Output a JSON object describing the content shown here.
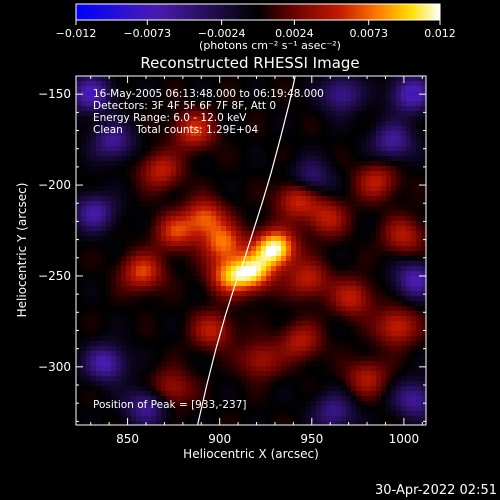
{
  "chart_data": {
    "type": "heatmap",
    "title": "Reconstructed RHESSI Image",
    "xlabel": "Heliocentric X (arcsec)",
    "ylabel": "Heliocentric Y (arcsec)",
    "xlim": [
      822,
      1012
    ],
    "ylim": [
      -332,
      -140
    ],
    "x_ticks": [
      850,
      900,
      950,
      1000
    ],
    "y_ticks": [
      -150,
      -200,
      -250,
      -300
    ],
    "x_tick_labels": [
      "850",
      "900",
      "950",
      "1000"
    ],
    "y_tick_labels": [
      "−150",
      "−200",
      "−250",
      "−300"
    ],
    "colorbar": {
      "range": [
        -0.012,
        0.012
      ],
      "ticks": [
        -0.012,
        -0.0073,
        -0.0024,
        0.0024,
        0.0073,
        0.012
      ],
      "tick_labels": [
        "−0.012",
        "−0.0073",
        "−0.0024",
        "0.0024",
        "0.0073",
        "0.012"
      ],
      "unit_label": "(photons cm⁻² s⁻¹ asec⁻²)",
      "colors": [
        "#0000ff",
        "#4a1cb0",
        "#000000",
        "#5a0000",
        "#c01800",
        "#ff7000",
        "#ffe000",
        "#ffffff"
      ]
    },
    "annotations": [
      "16-May-2005 06:13:48.000 to 06:19:48.000",
      "Detectors: 3F 4F 5F 6F 7F 8F, Att 0",
      "Energy Range: 6.0 - 12.0 keV",
      "Clean    Total counts: 1.29E+04"
    ],
    "peak_text": "Position of Peak = [933,-237]",
    "peak": [
      933,
      -237
    ],
    "limb_curve": {
      "name": "solar limb",
      "x": [
        888,
        893,
        898,
        903,
        908,
        913,
        918,
        923,
        928,
        933,
        938,
        941
      ],
      "y": [
        -332,
        -310,
        -290,
        -272,
        -256,
        -242,
        -226,
        -210,
        -193,
        -174,
        -154,
        -140
      ]
    },
    "hot_spots": [
      {
        "x": 930,
        "y": -235,
        "v": 0.012
      },
      {
        "x": 918,
        "y": -248,
        "v": 0.0095
      },
      {
        "x": 905,
        "y": -250,
        "v": 0.0075
      },
      {
        "x": 892,
        "y": -218,
        "v": 0.0068
      },
      {
        "x": 858,
        "y": -248,
        "v": 0.0064
      },
      {
        "x": 876,
        "y": -226,
        "v": 0.0058
      },
      {
        "x": 886,
        "y": -170,
        "v": 0.006
      },
      {
        "x": 868,
        "y": -192,
        "v": 0.0052
      },
      {
        "x": 942,
        "y": -208,
        "v": 0.0058
      },
      {
        "x": 958,
        "y": -218,
        "v": 0.005
      },
      {
        "x": 985,
        "y": -198,
        "v": 0.005
      },
      {
        "x": 1000,
        "y": -228,
        "v": 0.0048
      },
      {
        "x": 972,
        "y": -262,
        "v": 0.0052
      },
      {
        "x": 996,
        "y": -278,
        "v": 0.0058
      },
      {
        "x": 980,
        "y": -306,
        "v": 0.0046
      },
      {
        "x": 944,
        "y": -286,
        "v": 0.0048
      },
      {
        "x": 922,
        "y": -296,
        "v": 0.0044
      },
      {
        "x": 874,
        "y": -312,
        "v": 0.0044
      },
      {
        "x": 896,
        "y": -280,
        "v": 0.005
      },
      {
        "x": 902,
        "y": -232,
        "v": 0.0072
      },
      {
        "x": 948,
        "y": -252,
        "v": 0.0052
      }
    ],
    "cold_spots": [
      {
        "x": 830,
        "y": -150,
        "v": -0.007
      },
      {
        "x": 842,
        "y": -176,
        "v": -0.0058
      },
      {
        "x": 832,
        "y": -215,
        "v": -0.0062
      },
      {
        "x": 838,
        "y": -298,
        "v": -0.0068
      },
      {
        "x": 860,
        "y": -322,
        "v": -0.0058
      },
      {
        "x": 1004,
        "y": -150,
        "v": -0.0074
      },
      {
        "x": 994,
        "y": -176,
        "v": -0.006
      },
      {
        "x": 966,
        "y": -150,
        "v": -0.0056
      },
      {
        "x": 1006,
        "y": -252,
        "v": -0.0066
      },
      {
        "x": 962,
        "y": -325,
        "v": -0.0052
      },
      {
        "x": 1006,
        "y": -318,
        "v": -0.006
      },
      {
        "x": 950,
        "y": -196,
        "v": -0.0044
      }
    ]
  },
  "footer": {
    "timestamp": "30-Apr-2022 02:51"
  }
}
